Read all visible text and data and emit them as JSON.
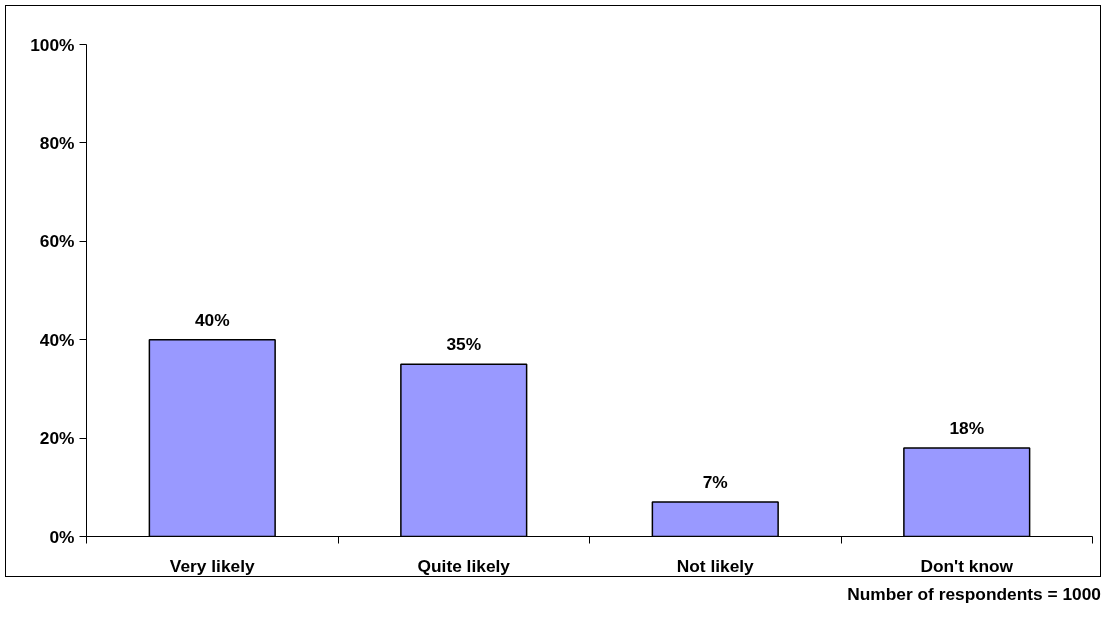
{
  "chart_data": {
    "type": "bar",
    "categories": [
      "Very likely",
      "Quite likely",
      "Not likely",
      "Don't know"
    ],
    "values": [
      40,
      35,
      7,
      18
    ],
    "color": "#9999ff",
    "value_labels": [
      "40%",
      "35%",
      "7%",
      "18%"
    ],
    "ylim": [
      0,
      100
    ],
    "yticks": [
      {
        "value": 0,
        "label": "0%"
      },
      {
        "value": 20,
        "label": "20%"
      },
      {
        "value": 40,
        "label": "40%"
      },
      {
        "value": 60,
        "label": "60%"
      },
      {
        "value": 80,
        "label": "80%"
      },
      {
        "value": 100,
        "label": "100%"
      }
    ],
    "grid": false,
    "annotations": [
      "Number of respondents = 1000"
    ]
  }
}
